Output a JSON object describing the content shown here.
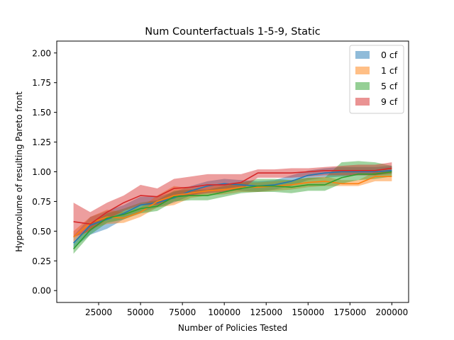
{
  "chart_data": {
    "type": "line",
    "title": "Num Counterfactuals 1-5-9, Static",
    "xlabel": "Number of Policies Tested",
    "ylabel": "Hypervolume of resulting Pareto front",
    "xlim": [
      0,
      210000
    ],
    "ylim": [
      -0.1,
      2.1
    ],
    "xticks": [
      25000,
      50000,
      75000,
      100000,
      125000,
      150000,
      175000,
      200000
    ],
    "yticks": [
      0.0,
      0.25,
      0.5,
      0.75,
      1.0,
      1.25,
      1.5,
      1.75,
      2.0
    ],
    "grid": false,
    "legend_position": "top-right",
    "x": [
      10000,
      20000,
      30000,
      40000,
      50000,
      60000,
      70000,
      80000,
      90000,
      100000,
      110000,
      120000,
      130000,
      140000,
      150000,
      160000,
      170000,
      180000,
      190000,
      200000
    ],
    "series": [
      {
        "name": "0 cf",
        "color": "#1f77b4",
        "mean": [
          0.4,
          0.55,
          0.6,
          0.65,
          0.72,
          0.74,
          0.78,
          0.84,
          0.88,
          0.9,
          0.89,
          0.88,
          0.89,
          0.92,
          0.97,
          0.99,
          1.0,
          1.0,
          1.0,
          1.01
        ],
        "lower": [
          0.36,
          0.47,
          0.52,
          0.6,
          0.66,
          0.7,
          0.74,
          0.8,
          0.84,
          0.86,
          0.84,
          0.83,
          0.85,
          0.88,
          0.93,
          0.95,
          0.96,
          0.97,
          0.97,
          0.98
        ],
        "upper": [
          0.46,
          0.62,
          0.67,
          0.72,
          0.79,
          0.79,
          0.83,
          0.88,
          0.92,
          0.94,
          0.93,
          0.92,
          0.93,
          0.97,
          1.01,
          1.03,
          1.04,
          1.04,
          1.04,
          1.05
        ]
      },
      {
        "name": "1 cf",
        "color": "#ff7f0e",
        "mean": [
          0.45,
          0.57,
          0.62,
          0.61,
          0.66,
          0.75,
          0.8,
          0.82,
          0.84,
          0.85,
          0.87,
          0.87,
          0.88,
          0.89,
          0.91,
          0.92,
          0.9,
          0.9,
          0.96,
          0.96
        ],
        "lower": [
          0.4,
          0.52,
          0.56,
          0.57,
          0.62,
          0.7,
          0.72,
          0.78,
          0.8,
          0.81,
          0.83,
          0.83,
          0.84,
          0.85,
          0.87,
          0.88,
          0.88,
          0.88,
          0.92,
          0.92
        ],
        "upper": [
          0.5,
          0.62,
          0.68,
          0.66,
          0.7,
          0.8,
          0.88,
          0.86,
          0.88,
          0.89,
          0.91,
          0.91,
          0.92,
          0.93,
          0.95,
          0.96,
          0.93,
          0.93,
          1.0,
          1.0
        ]
      },
      {
        "name": "5 cf",
        "color": "#2ca02c",
        "mean": [
          0.35,
          0.51,
          0.61,
          0.64,
          0.69,
          0.71,
          0.79,
          0.8,
          0.8,
          0.83,
          0.86,
          0.88,
          0.88,
          0.87,
          0.89,
          0.89,
          0.95,
          0.98,
          0.98,
          1.0
        ],
        "lower": [
          0.31,
          0.47,
          0.57,
          0.6,
          0.65,
          0.67,
          0.75,
          0.76,
          0.76,
          0.79,
          0.82,
          0.83,
          0.83,
          0.82,
          0.84,
          0.84,
          0.9,
          0.93,
          0.94,
          0.96
        ],
        "upper": [
          0.39,
          0.56,
          0.65,
          0.69,
          0.74,
          0.76,
          0.84,
          0.85,
          0.85,
          0.88,
          0.91,
          0.94,
          0.94,
          0.93,
          0.95,
          0.95,
          1.08,
          1.09,
          1.08,
          1.05
        ]
      },
      {
        "name": "9 cf",
        "color": "#d62728",
        "mean": [
          0.58,
          0.56,
          0.66,
          0.74,
          0.8,
          0.79,
          0.86,
          0.87,
          0.89,
          0.89,
          0.91,
          0.99,
          0.99,
          0.99,
          1.0,
          1.01,
          1.01,
          1.01,
          1.01,
          1.03
        ],
        "lower": [
          0.45,
          0.5,
          0.6,
          0.67,
          0.72,
          0.72,
          0.78,
          0.8,
          0.82,
          0.83,
          0.85,
          0.95,
          0.95,
          0.95,
          0.96,
          0.97,
          0.97,
          0.97,
          0.97,
          0.99
        ],
        "upper": [
          0.74,
          0.66,
          0.74,
          0.8,
          0.89,
          0.86,
          0.94,
          0.96,
          0.98,
          0.98,
          0.98,
          1.02,
          1.02,
          1.03,
          1.03,
          1.04,
          1.05,
          1.06,
          1.06,
          1.08
        ]
      }
    ]
  }
}
